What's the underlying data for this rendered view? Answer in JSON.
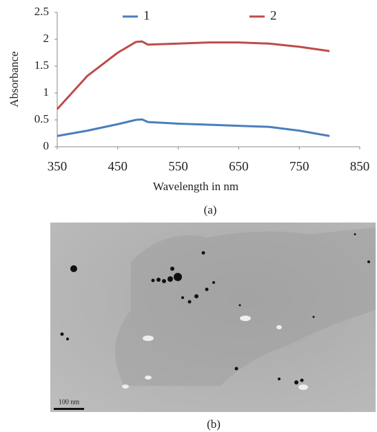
{
  "chart_data": {
    "type": "line",
    "x_label": "Wavelength in nm",
    "y_label": "Absorbance",
    "x": [
      350,
      400,
      450,
      480,
      490,
      500,
      550,
      600,
      650,
      700,
      750,
      800
    ],
    "series": [
      {
        "name": "1",
        "color": "#4a7ebb",
        "values": [
          0.2,
          0.3,
          0.42,
          0.5,
          0.51,
          0.46,
          0.43,
          0.41,
          0.39,
          0.37,
          0.3,
          0.2
        ]
      },
      {
        "name": "2",
        "color": "#be4b48",
        "values": [
          0.7,
          1.32,
          1.75,
          1.95,
          1.96,
          1.9,
          1.92,
          1.94,
          1.94,
          1.92,
          1.86,
          1.78
        ]
      }
    ],
    "xlim": [
      350,
      850
    ],
    "xticks": [
      350,
      450,
      550,
      650,
      750,
      850
    ],
    "ylim": [
      0,
      2.5
    ],
    "yticks": [
      0,
      0.5,
      1,
      1.5,
      2,
      2.5
    ],
    "legend": "top",
    "grid": false
  },
  "captions": [
    "(a)",
    "(b)"
  ],
  "scale_bar": "100 nm"
}
